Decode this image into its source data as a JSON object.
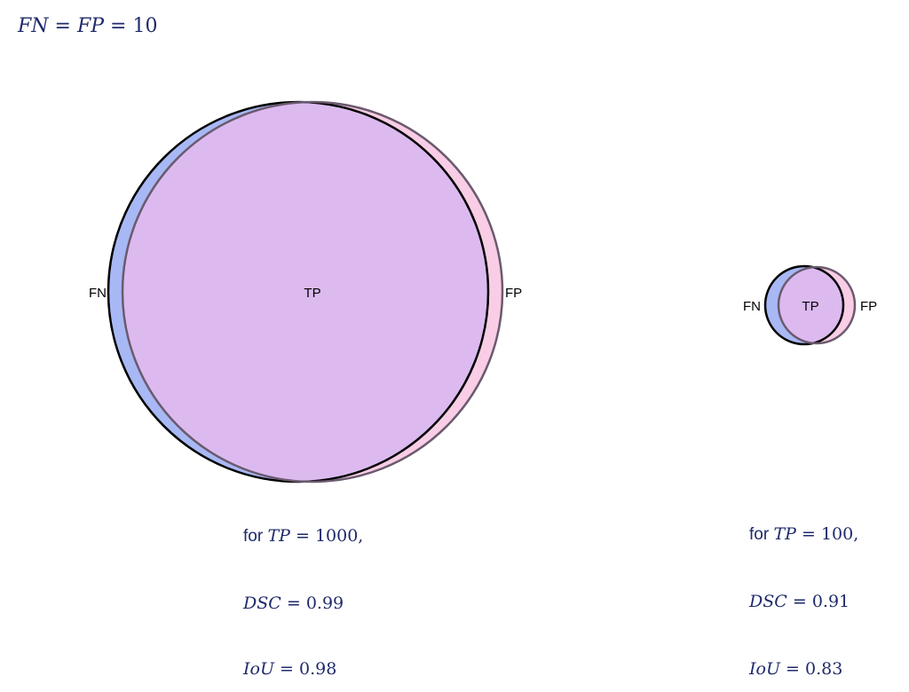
{
  "header": {
    "lhs_a": "FN",
    "lhs_b": "FP",
    "value": "10"
  },
  "diagrams": [
    {
      "labels": {
        "fn": "FN",
        "tp": "TP",
        "fp": "FP"
      },
      "caption": {
        "for_word": "for",
        "tp_var": "TP",
        "tp_value": "1000,",
        "dsc_var": "DSC",
        "dsc_value": "0.99",
        "iou_var": "IoU",
        "iou_value": "0.98"
      }
    },
    {
      "labels": {
        "fn": "FN",
        "tp": "TP",
        "fp": "FP"
      },
      "caption": {
        "for_word": "for",
        "tp_var": "TP",
        "tp_value": "100,",
        "dsc_var": "DSC",
        "dsc_value": "0.91",
        "iou_var": "IoU",
        "iou_value": "0.83"
      }
    }
  ],
  "colors": {
    "fn_fill": "#a8b8f5",
    "fp_fill": "#f9cde6",
    "overlap_fill": "#dcbaf0",
    "ground_truth_stroke": "#000000",
    "prediction_stroke": "#6b5a6e"
  }
}
